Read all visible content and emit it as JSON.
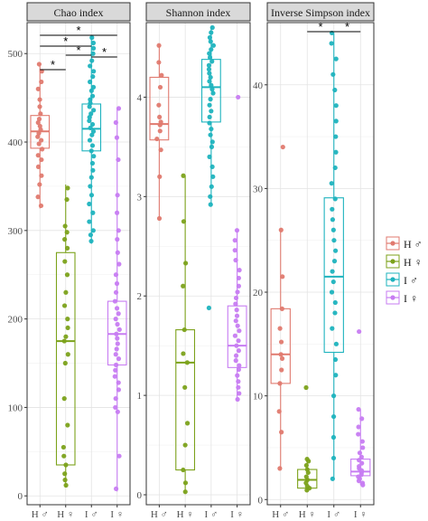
{
  "chart_data": [
    {
      "type": "box",
      "title": "Chao index",
      "categories": [
        "H ♂",
        "H ♀",
        "I ♂",
        "I ♀"
      ],
      "ylim": [
        -10,
        535
      ],
      "yticks": [
        0,
        100,
        200,
        300,
        400,
        500
      ],
      "grid": true,
      "boxes": [
        {
          "q1": 393,
          "median": 412,
          "q3": 430,
          "whisker_low": 325,
          "whisker_high": 488,
          "points": [
            328,
            338,
            352,
            362,
            372,
            380,
            385,
            392,
            398,
            402,
            406,
            410,
            414,
            418,
            422,
            426,
            432,
            440,
            448,
            460,
            468,
            480,
            488
          ]
        },
        {
          "q1": 35,
          "median": 175,
          "q3": 275,
          "whisker_low": 10,
          "whisker_high": 352,
          "points": [
            12,
            18,
            25,
            35,
            45,
            55,
            80,
            110,
            150,
            160,
            175,
            180,
            190,
            200,
            215,
            230,
            250,
            265,
            280,
            290,
            298,
            305,
            335,
            348
          ]
        },
        {
          "q1": 390,
          "median": 415,
          "q3": 443,
          "whisker_low": 285,
          "whisker_high": 520,
          "points": [
            288,
            295,
            300,
            310,
            320,
            330,
            340,
            350,
            360,
            368,
            376,
            384,
            390,
            396,
            402,
            408,
            412,
            416,
            420,
            424,
            428,
            432,
            436,
            440,
            444,
            448,
            452,
            458,
            462,
            468,
            474,
            480,
            486,
            492,
            500,
            506,
            512,
            518
          ]
        },
        {
          "q1": 148,
          "median": 183,
          "q3": 220,
          "whisker_low": 5,
          "whisker_high": 438,
          "points": [
            8,
            45,
            95,
            100,
            110,
            120,
            128,
            135,
            142,
            148,
            155,
            160,
            166,
            172,
            178,
            183,
            188,
            194,
            200,
            206,
            212,
            220,
            230,
            240,
            250,
            262,
            275,
            290,
            300,
            320,
            340,
            380,
            405,
            422,
            438
          ]
        }
      ],
      "significance": [
        {
          "from": 0,
          "to": 1,
          "label": "*"
        },
        {
          "from": 1,
          "to": 2,
          "label": "*"
        },
        {
          "from": 0,
          "to": 2,
          "label": "*"
        },
        {
          "from": 2,
          "to": 3,
          "label": "*"
        },
        {
          "from": 0,
          "to": 3,
          "label": "*"
        }
      ]
    },
    {
      "type": "box",
      "title": "Shannon index",
      "categories": [
        "H ♂",
        "H ♀",
        "I ♂",
        "I ♀"
      ],
      "ylim": [
        -0.1,
        4.75
      ],
      "yticks": [
        0,
        1,
        2,
        3,
        4
      ],
      "grid": true,
      "boxes": [
        {
          "q1": 3.57,
          "median": 3.73,
          "q3": 4.2,
          "whisker_low": 2.78,
          "whisker_high": 4.52,
          "points": [
            2.78,
            3.2,
            3.47,
            3.58,
            3.66,
            3.72,
            3.75,
            3.8,
            3.92,
            4.1,
            4.22,
            4.35,
            4.52
          ]
        },
        {
          "q1": 0.25,
          "median": 1.33,
          "q3": 1.66,
          "whisker_low": 0.02,
          "whisker_high": 3.21,
          "points": [
            0.03,
            0.12,
            0.25,
            0.5,
            0.72,
            1.08,
            1.33,
            1.42,
            1.66,
            2.1,
            2.33,
            2.75,
            3.21
          ]
        },
        {
          "q1": 3.75,
          "median": 4.1,
          "q3": 4.38,
          "whisker_low": 2.9,
          "whisker_high": 4.7,
          "points": [
            1.88,
            2.92,
            3.0,
            3.1,
            3.2,
            3.3,
            3.4,
            3.5,
            3.55,
            3.62,
            3.68,
            3.74,
            3.8,
            3.86,
            3.92,
            3.98,
            4.04,
            4.08,
            4.12,
            4.16,
            4.2,
            4.24,
            4.28,
            4.32,
            4.36,
            4.4,
            4.44,
            4.48,
            4.52,
            4.56,
            4.6,
            4.65,
            4.7
          ]
        },
        {
          "q1": 1.28,
          "median": 1.5,
          "q3": 1.9,
          "whisker_low": 0.95,
          "whisker_high": 2.68,
          "points": [
            0.96,
            1.02,
            1.08,
            1.14,
            1.2,
            1.26,
            1.3,
            1.35,
            1.4,
            1.45,
            1.5,
            1.55,
            1.6,
            1.65,
            1.7,
            1.75,
            1.8,
            1.86,
            1.92,
            1.98,
            2.04,
            2.1,
            2.18,
            2.26,
            2.36,
            2.46,
            2.56,
            2.66,
            4.0
          ]
        }
      ],
      "significance": []
    },
    {
      "type": "box",
      "title": "Inverse Simpson index",
      "categories": [
        "H ♂",
        "H ♀",
        "I ♂",
        "I ♀"
      ],
      "ylim": [
        -0.5,
        46
      ],
      "yticks": [
        0,
        10,
        20,
        30,
        40
      ],
      "grid": true,
      "boxes": [
        {
          "q1": 11.2,
          "median": 14.0,
          "q3": 18.4,
          "whisker_low": 3.0,
          "whisker_high": 26.0,
          "points": [
            3.0,
            6.5,
            8.5,
            11.2,
            12.5,
            13.6,
            14.0,
            15.2,
            16.5,
            18.4,
            21.5,
            26.0,
            34.0
          ]
        },
        {
          "q1": 1.1,
          "median": 1.9,
          "q3": 2.9,
          "whisker_low": 0.9,
          "whisker_high": 3.9,
          "points": [
            0.9,
            1.1,
            1.3,
            1.6,
            1.9,
            2.2,
            2.6,
            2.9,
            3.3,
            3.7,
            3.9,
            10.8
          ]
        },
        {
          "q1": 14.2,
          "median": 21.5,
          "q3": 29.1,
          "whisker_low": 2.0,
          "whisker_high": 45.0,
          "points": [
            2.0,
            4.0,
            6.0,
            8.0,
            10.0,
            12.0,
            13.5,
            15.0,
            16.5,
            18.0,
            19.0,
            20.0,
            21.0,
            22.0,
            23.0,
            24.0,
            25.0,
            26.0,
            27.0,
            28.0,
            29.0,
            30.5,
            32.0,
            33.5,
            35.0,
            36.5,
            38.0,
            39.5,
            41.0,
            42.5,
            44.0,
            45.0
          ]
        },
        {
          "q1": 2.3,
          "median": 2.7,
          "q3": 3.9,
          "whisker_low": 1.4,
          "whisker_high": 8.7,
          "points": [
            1.4,
            1.6,
            1.8,
            2.0,
            2.2,
            2.4,
            2.6,
            2.8,
            3.0,
            3.2,
            3.5,
            3.8,
            4.1,
            4.5,
            5.0,
            5.6,
            6.3,
            7.0,
            7.8,
            8.7,
            16.2
          ]
        }
      ],
      "significance": [
        {
          "from": 1,
          "to": 2,
          "label": "*"
        },
        {
          "from": 2,
          "to": 3,
          "label": "*"
        }
      ]
    }
  ],
  "legend": {
    "placement": "right",
    "entries": [
      {
        "label": "H ♂",
        "color": "#E07A6F"
      },
      {
        "label": "H ♀",
        "color": "#7CA21B"
      },
      {
        "label": "I ♂",
        "color": "#1EB3BE"
      },
      {
        "label": "I ♀",
        "color": "#C77CF2"
      }
    ]
  }
}
